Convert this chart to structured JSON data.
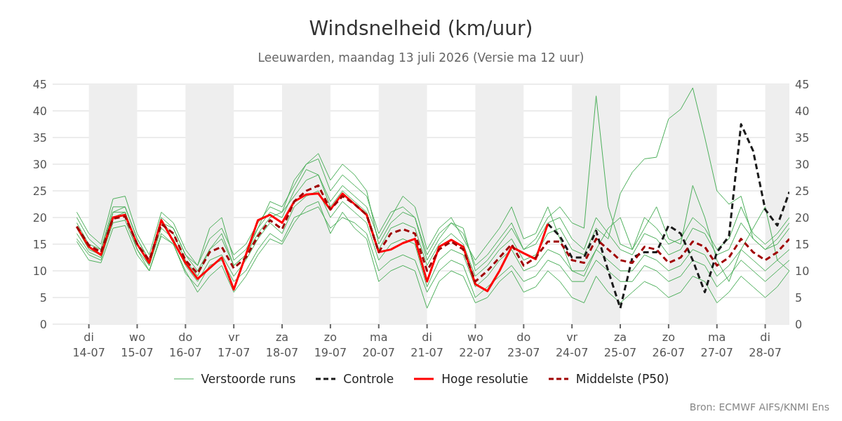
{
  "chart_data": {
    "type": "line",
    "title": "Windsnelheid (km/uur)",
    "subtitle": "Leeuwarden, maandag 13 juli 2026 (Versie ma 12 uur)",
    "x": [
      "2026-07-13T18:00",
      "2026-07-14T00:00",
      "2026-07-14T06:00",
      "2026-07-14T12:00",
      "2026-07-14T18:00",
      "2026-07-15T00:00",
      "2026-07-15T06:00",
      "2026-07-15T12:00",
      "2026-07-15T18:00",
      "2026-07-16T00:00",
      "2026-07-16T06:00",
      "2026-07-16T12:00",
      "2026-07-16T18:00",
      "2026-07-17T00:00",
      "2026-07-17T06:00",
      "2026-07-17T12:00",
      "2026-07-17T18:00",
      "2026-07-18T00:00",
      "2026-07-18T06:00",
      "2026-07-18T12:00",
      "2026-07-18T18:00",
      "2026-07-19T00:00",
      "2026-07-19T06:00",
      "2026-07-19T12:00",
      "2026-07-19T18:00",
      "2026-07-20T00:00",
      "2026-07-20T06:00",
      "2026-07-20T12:00",
      "2026-07-20T18:00",
      "2026-07-21T00:00",
      "2026-07-21T06:00",
      "2026-07-21T12:00",
      "2026-07-21T18:00",
      "2026-07-22T00:00",
      "2026-07-22T06:00",
      "2026-07-22T12:00",
      "2026-07-22T18:00",
      "2026-07-23T00:00",
      "2026-07-23T06:00",
      "2026-07-23T12:00",
      "2026-07-23T18:00",
      "2026-07-24T00:00",
      "2026-07-24T06:00",
      "2026-07-24T12:00",
      "2026-07-24T18:00",
      "2026-07-25T00:00",
      "2026-07-25T06:00",
      "2026-07-25T12:00",
      "2026-07-25T18:00",
      "2026-07-26T00:00",
      "2026-07-26T06:00",
      "2026-07-26T12:00",
      "2026-07-26T18:00",
      "2026-07-27T00:00",
      "2026-07-27T06:00",
      "2026-07-27T12:00",
      "2026-07-27T18:00",
      "2026-07-28T00:00",
      "2026-07-28T06:00",
      "2026-07-28T12:00"
    ],
    "series": [
      {
        "name": "Verstoorde runs",
        "color": "#4caf5a",
        "values": [
          21,
          17,
          15,
          23.5,
          24,
          17,
          13,
          21,
          19,
          14,
          11,
          16,
          18,
          13,
          15,
          19,
          22,
          21,
          27,
          30,
          31,
          25,
          28,
          26,
          24,
          17,
          21,
          22,
          20,
          13,
          17,
          19,
          17,
          11,
          13,
          16,
          19,
          14,
          16,
          20,
          22,
          19,
          18,
          42.8,
          22,
          15,
          14,
          20,
          18,
          15,
          16,
          20,
          18,
          14,
          16,
          22,
          17,
          15,
          17,
          20
        ]
      },
      {
        "color": "#4caf5a",
        "values": [
          15.5,
          12,
          11.5,
          18,
          18.5,
          13,
          10,
          16.5,
          15,
          9.5,
          7,
          11,
          12,
          8,
          10,
          14,
          17,
          15.5,
          20,
          21,
          22,
          18,
          20,
          19,
          17,
          10,
          12,
          13,
          12,
          6,
          10,
          12,
          11,
          5,
          7,
          9,
          11,
          8,
          9,
          12,
          11,
          8,
          8,
          12,
          10,
          8,
          8,
          11,
          10,
          8,
          9,
          12,
          11,
          7,
          9,
          12,
          10,
          8,
          10,
          12
        ]
      },
      {
        "color": "#4caf5a",
        "values": [
          19,
          15,
          14,
          22,
          22,
          16,
          12,
          20,
          18,
          13,
          10,
          14,
          16,
          11,
          13,
          17,
          20,
          21,
          24,
          27,
          28,
          22,
          25,
          23,
          21,
          14,
          18,
          19,
          18,
          11,
          15,
          17,
          15,
          9,
          11,
          14,
          16,
          12,
          13,
          17,
          18,
          14,
          13,
          18,
          16,
          24.5,
          28.5,
          31,
          31.3,
          38.5,
          40.3,
          44.3,
          35,
          25,
          22.5,
          24,
          16,
          14,
          15,
          18
        ]
      },
      {
        "color": "#4caf5a",
        "values": [
          17,
          13.5,
          12.5,
          19,
          19.5,
          14,
          11,
          18,
          16,
          11,
          8,
          12,
          13,
          9,
          12,
          16,
          19,
          17,
          22,
          24,
          25,
          20,
          23,
          21,
          19,
          12,
          15,
          16,
          15,
          7,
          12,
          14,
          13,
          7,
          9,
          12,
          14,
          10,
          11,
          14,
          13,
          10,
          10,
          14,
          12,
          10,
          10,
          13,
          12,
          10,
          11,
          14,
          13,
          9,
          11,
          14,
          12,
          10,
          12,
          14
        ]
      },
      {
        "color": "#4caf5a",
        "values": [
          20,
          16,
          14,
          21,
          22,
          16,
          12,
          19,
          18,
          13,
          11,
          18,
          20,
          12,
          14,
          18,
          21,
          20,
          25,
          29,
          28,
          23,
          26,
          24,
          22,
          16,
          20,
          24,
          22,
          14,
          18,
          20,
          16,
          12,
          15,
          18,
          22,
          16,
          17,
          22,
          16,
          10,
          9,
          14,
          18,
          20,
          14,
          18,
          22,
          16,
          15,
          26,
          20,
          12,
          8,
          14,
          18,
          22,
          12,
          10
        ]
      },
      {
        "color": "#4caf5a",
        "values": [
          16,
          13,
          12,
          20,
          21,
          14,
          10,
          17,
          15,
          10,
          6,
          9,
          11,
          6,
          9,
          13,
          16,
          15,
          19,
          22,
          23,
          17,
          21,
          18,
          16,
          8,
          10,
          11,
          10,
          3,
          8,
          10,
          9,
          4,
          5,
          8,
          10,
          6,
          7,
          10,
          8,
          5,
          4,
          9,
          6,
          4,
          6,
          8,
          7,
          5,
          6,
          9,
          8,
          4,
          6,
          9,
          7,
          5,
          7,
          10
        ]
      },
      {
        "color": "#4caf5a",
        "values": [
          18,
          14,
          13,
          21,
          21,
          15,
          11,
          19,
          17,
          12,
          9,
          14,
          17,
          11,
          13,
          18,
          23,
          22,
          26,
          30,
          32,
          27,
          30,
          28,
          25,
          15,
          19,
          21,
          20,
          12,
          16,
          19,
          18,
          10,
          12,
          15,
          18,
          14,
          15,
          19,
          20,
          16,
          14,
          20,
          17,
          14,
          13,
          17,
          16,
          13,
          14,
          18,
          17,
          13,
          14,
          19,
          16,
          14,
          16,
          19
        ]
      },
      {
        "name": "Controle",
        "color": "#1a1a1a",
        "line_style": "dashed",
        "values": [
          null,
          null,
          null,
          null,
          null,
          null,
          null,
          null,
          null,
          null,
          null,
          null,
          null,
          null,
          null,
          null,
          null,
          null,
          null,
          null,
          null,
          null,
          null,
          null,
          null,
          null,
          null,
          null,
          null,
          null,
          null,
          null,
          null,
          null,
          null,
          null,
          null,
          null,
          null,
          18.8,
          16.5,
          12.5,
          12.5,
          17.5,
          10,
          3,
          12.5,
          13.5,
          13.5,
          18.5,
          17,
          12,
          6,
          13.5,
          16.5,
          37.5,
          32.5,
          21.5,
          18.5,
          24.8
        ]
      },
      {
        "name": "Hoge resolutie",
        "color": "#ff0000",
        "values": [
          18.3,
          14.5,
          13,
          20,
          20.5,
          15,
          11.5,
          19.5,
          15.5,
          11.5,
          8.5,
          10.5,
          12.5,
          6.5,
          13,
          19.5,
          20.5,
          19,
          23,
          24.3,
          24.5,
          21.5,
          24.5,
          22.5,
          20.5,
          13.5,
          14,
          15.2,
          16,
          8,
          14.5,
          15.8,
          14.5,
          7.5,
          6.2,
          10,
          14.5,
          13.3,
          12.2,
          18.8,
          null,
          null,
          null,
          null,
          null,
          null,
          null,
          null,
          null,
          null,
          null,
          null,
          null,
          null,
          null,
          null,
          null,
          null,
          null,
          null
        ]
      },
      {
        "name": "Middelste (P50)",
        "color": "#a00000",
        "line_style": "dashed",
        "values": [
          18.3,
          14.8,
          13.5,
          19.8,
          20.2,
          15,
          12,
          18.8,
          17,
          12,
          9.5,
          13.5,
          14.5,
          10.5,
          12.5,
          16.5,
          19.5,
          17.8,
          23,
          25,
          26,
          21.5,
          24,
          22.5,
          20.5,
          13.5,
          17,
          17.8,
          17,
          10,
          14,
          15.5,
          14,
          8,
          10,
          12.5,
          15,
          11,
          12.5,
          15.5,
          15.5,
          12,
          11.5,
          16,
          14,
          12,
          11.5,
          14.5,
          14,
          11.5,
          12.5,
          15.5,
          14.5,
          11,
          12.5,
          16,
          13.5,
          12,
          13.5,
          16
        ]
      }
    ],
    "xlim": [
      "2026-07-13T06:00",
      "2026-07-28T12:00"
    ],
    "xticks": [
      {
        "value": "2026-07-14",
        "label": "di\n14-07"
      },
      {
        "value": "2026-07-15",
        "label": "wo\n15-07"
      },
      {
        "value": "2026-07-16",
        "label": "do\n16-07"
      },
      {
        "value": "2026-07-17",
        "label": "vr\n17-07"
      },
      {
        "value": "2026-07-18",
        "label": "za\n18-07"
      },
      {
        "value": "2026-07-19",
        "label": "zo\n19-07"
      },
      {
        "value": "2026-07-20",
        "label": "ma\n20-07"
      },
      {
        "value": "2026-07-21",
        "label": "di\n21-07"
      },
      {
        "value": "2026-07-22",
        "label": "wo\n22-07"
      },
      {
        "value": "2026-07-23",
        "label": "do\n23-07"
      },
      {
        "value": "2026-07-24",
        "label": "vr\n24-07"
      },
      {
        "value": "2026-07-25",
        "label": "za\n25-07"
      },
      {
        "value": "2026-07-26",
        "label": "zo\n26-07"
      },
      {
        "value": "2026-07-27",
        "label": "ma\n27-07"
      },
      {
        "value": "2026-07-28",
        "label": "di\n28-07"
      }
    ],
    "ylim": [
      0,
      45
    ],
    "yticks": [
      0,
      5,
      10,
      15,
      20,
      25,
      30,
      35,
      40,
      45
    ],
    "y2lim": [
      0,
      45
    ],
    "y2ticks": [
      0,
      5,
      10,
      15,
      20,
      25,
      30,
      35,
      40,
      45
    ],
    "bands": [
      {
        "axis": "x",
        "from": "2026-07-14",
        "to": "2026-07-15",
        "color": "#eeeeee"
      },
      {
        "axis": "x",
        "from": "2026-07-16",
        "to": "2026-07-17",
        "color": "#eeeeee"
      },
      {
        "axis": "x",
        "from": "2026-07-18",
        "to": "2026-07-19",
        "color": "#eeeeee"
      },
      {
        "axis": "x",
        "from": "2026-07-20",
        "to": "2026-07-21",
        "color": "#eeeeee"
      },
      {
        "axis": "x",
        "from": "2026-07-22",
        "to": "2026-07-23",
        "color": "#eeeeee"
      },
      {
        "axis": "x",
        "from": "2026-07-24",
        "to": "2026-07-25",
        "color": "#eeeeee"
      },
      {
        "axis": "x",
        "from": "2026-07-26",
        "to": "2026-07-27",
        "color": "#eeeeee"
      },
      {
        "axis": "x",
        "from": "2026-07-28",
        "to": "2026-07-28T12:00",
        "color": "#eeeeee"
      }
    ],
    "grid": "y",
    "legend": "bottom",
    "marker": "none",
    "line_style": "solid",
    "annotations": [
      "Bron: ECMWF AIFS/KNMI Ens"
    ]
  }
}
